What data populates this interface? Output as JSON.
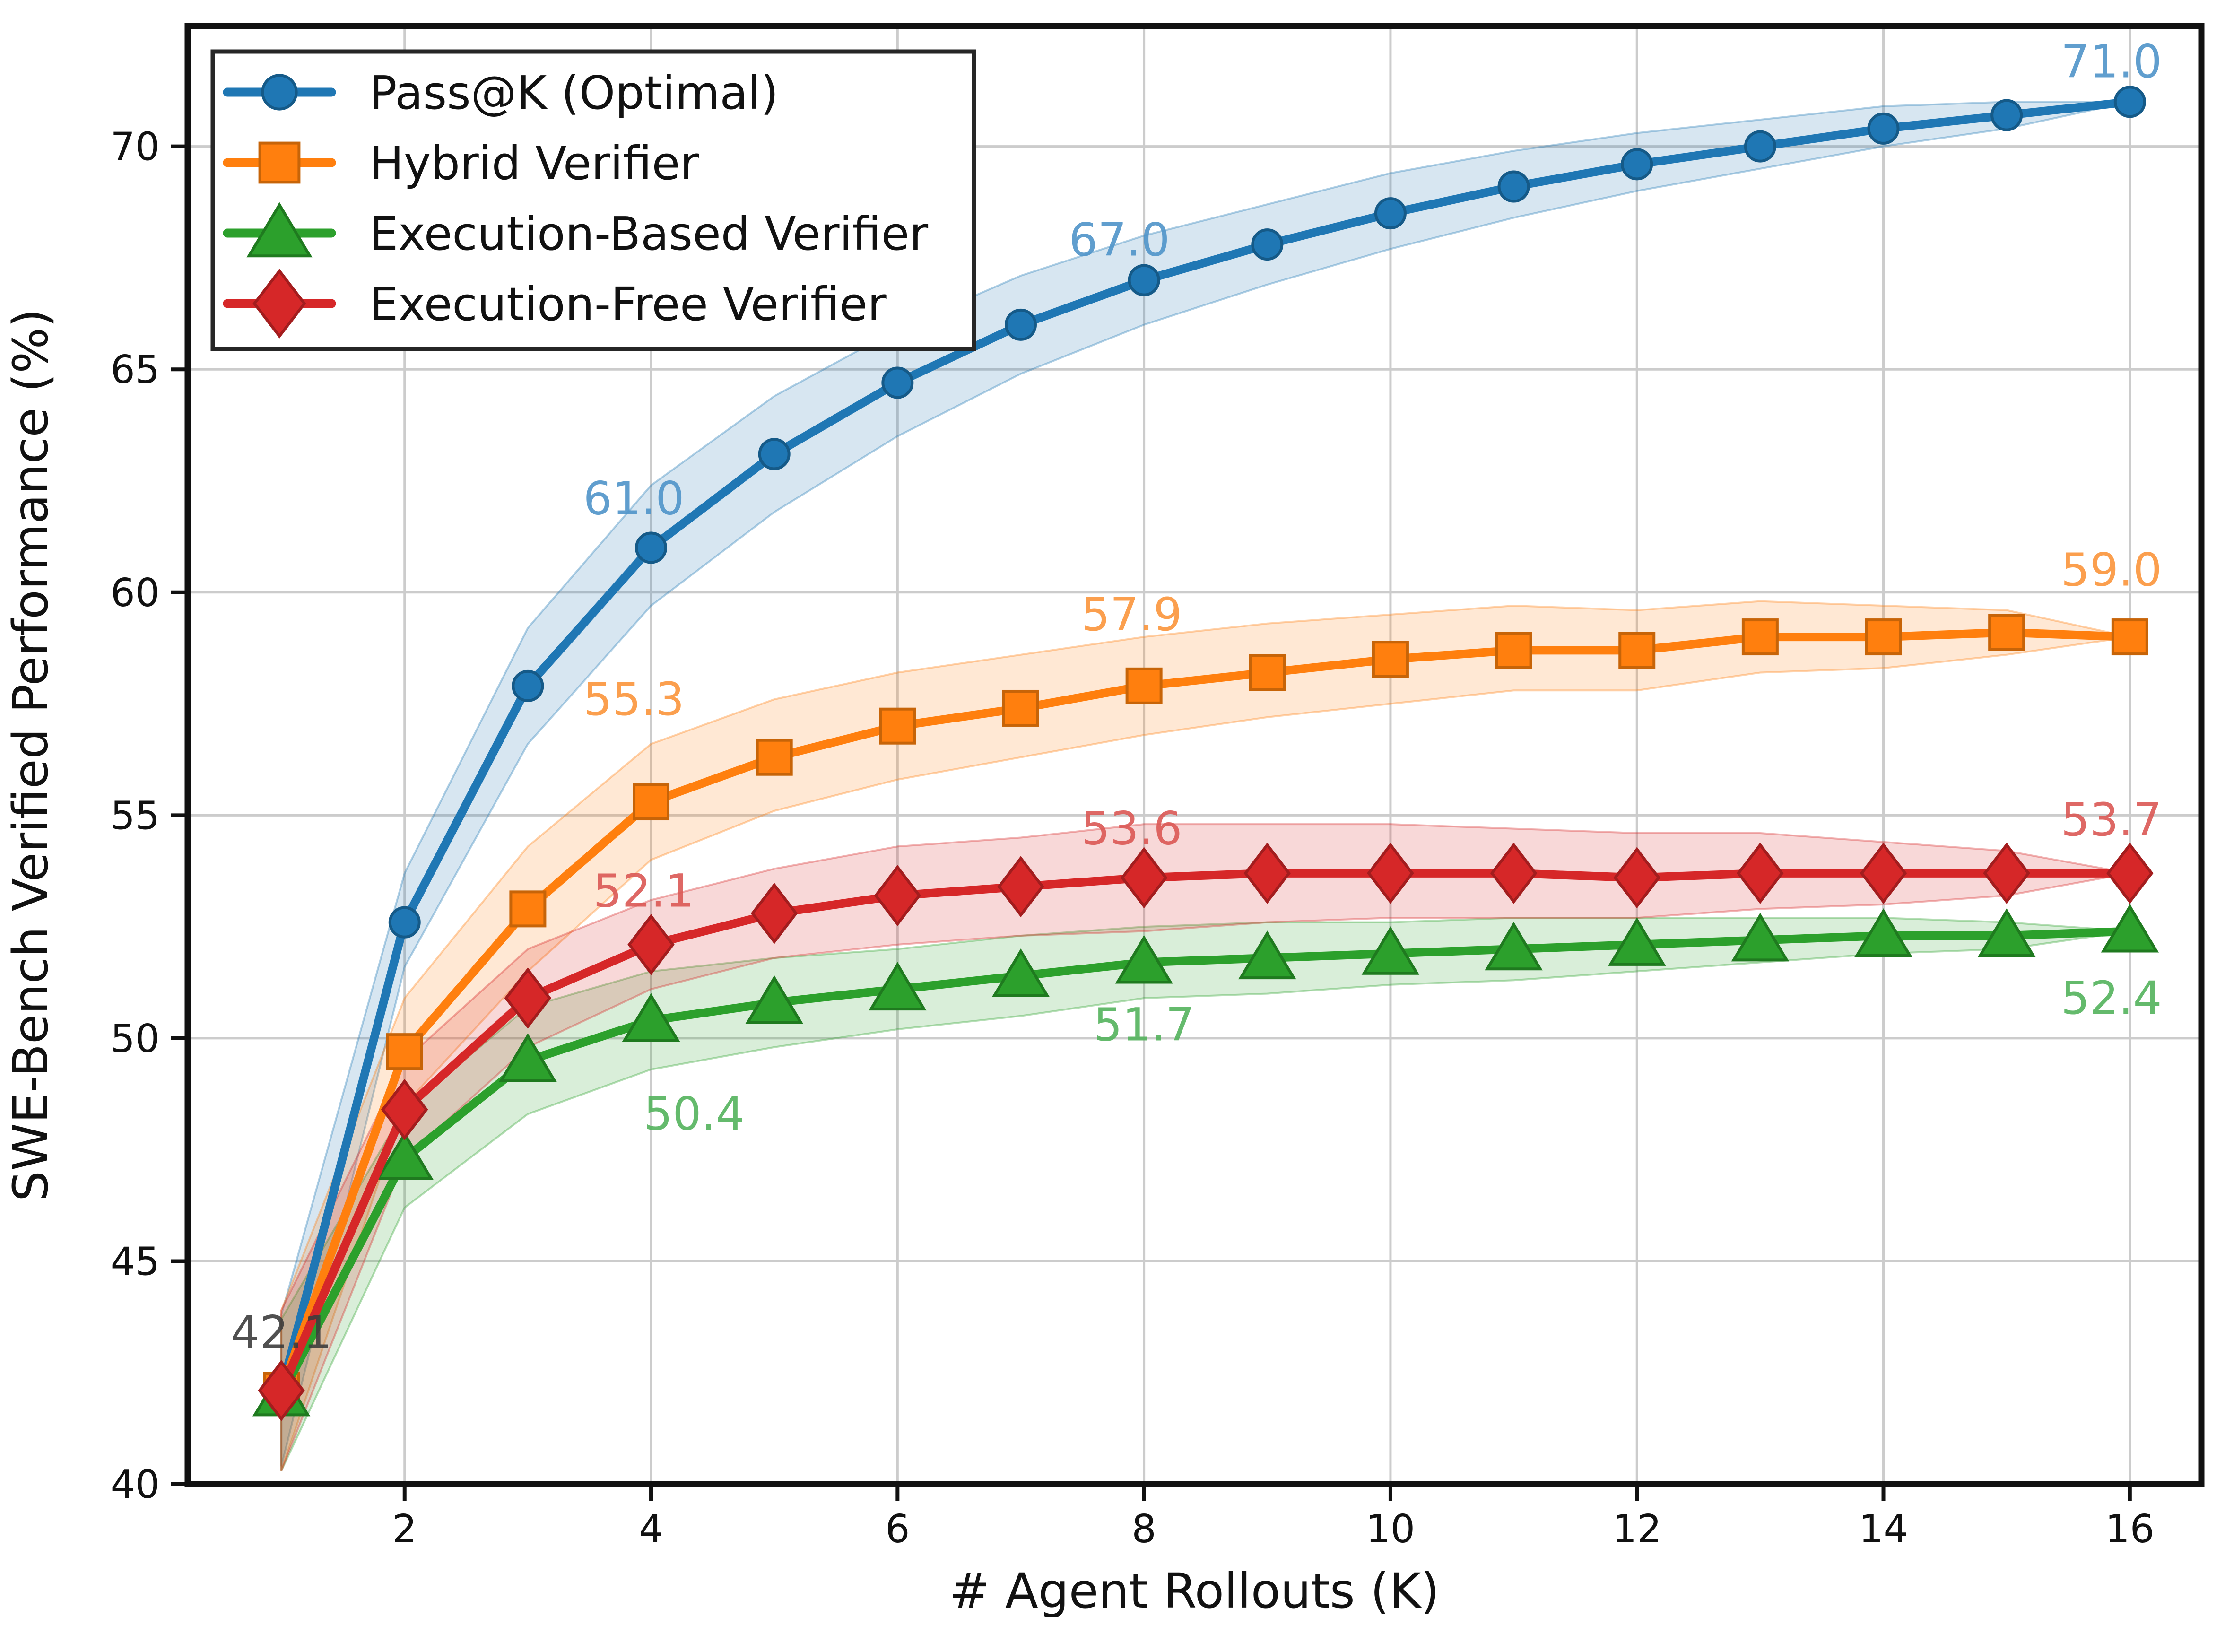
{
  "figure": {
    "background": "#ffffff"
  },
  "chart_data": {
    "type": "line",
    "title": "",
    "xlabel": "# Agent Rollouts (K)",
    "ylabel": "SWE-Bench Verified Performance (%)",
    "x": [
      1,
      2,
      3,
      4,
      5,
      6,
      7,
      8,
      9,
      10,
      11,
      12,
      13,
      14,
      15,
      16
    ],
    "xticks": [
      2,
      4,
      6,
      8,
      10,
      12,
      14,
      16
    ],
    "yticks": [
      40,
      45,
      50,
      55,
      60,
      65,
      70
    ],
    "xlim": [
      0.24,
      16.58
    ],
    "ylim": [
      40,
      72.7
    ],
    "grid": true,
    "grid_color": "#cccccc",
    "axis_color": "#111111",
    "tick_label_color": "#111111",
    "legend": {
      "position": "upper left",
      "border_color": "#262626",
      "background": "#ffffff",
      "text_color": "#111111"
    },
    "series": [
      {
        "id": "pass-at-k-optimal",
        "name": "Pass@K (Optimal)",
        "marker": "circle",
        "color": "#1f77b4",
        "edge_color": "#155a88",
        "values": [
          42.1,
          52.6,
          57.9,
          61.0,
          63.1,
          64.7,
          66.0,
          67.0,
          67.8,
          68.5,
          69.1,
          69.6,
          70.0,
          70.4,
          70.7,
          71.0
        ],
        "band_low": [
          40.4,
          51.6,
          56.6,
          59.7,
          61.8,
          63.5,
          64.9,
          66.0,
          66.9,
          67.7,
          68.4,
          69.0,
          69.5,
          70.0,
          70.4,
          71.0
        ],
        "band_high": [
          43.8,
          53.7,
          59.2,
          62.4,
          64.4,
          65.9,
          67.1,
          68.0,
          68.7,
          69.4,
          69.9,
          70.3,
          70.6,
          70.9,
          71.0,
          71.0
        ]
      },
      {
        "id": "hybrid-verifier",
        "name": "Hybrid Verifier",
        "marker": "square",
        "color": "#ff7f0e",
        "edge_color": "#c76408",
        "values": [
          42.1,
          49.7,
          52.9,
          55.3,
          56.3,
          57.0,
          57.4,
          57.9,
          58.2,
          58.5,
          58.7,
          58.7,
          59.0,
          59.0,
          59.1,
          59.0
        ],
        "band_low": [
          40.3,
          48.5,
          51.5,
          54.0,
          55.1,
          55.8,
          56.3,
          56.8,
          57.2,
          57.5,
          57.8,
          57.8,
          58.2,
          58.3,
          58.6,
          59.0
        ],
        "band_high": [
          43.9,
          50.9,
          54.3,
          56.6,
          57.6,
          58.2,
          58.6,
          59.0,
          59.3,
          59.5,
          59.7,
          59.6,
          59.8,
          59.7,
          59.6,
          59.0
        ]
      },
      {
        "id": "execution-based-verifier",
        "name": "Execution-Based Verifier",
        "marker": "triangle",
        "color": "#2ca02c",
        "edge_color": "#1f7a1f",
        "values": [
          42.0,
          47.3,
          49.5,
          50.4,
          50.8,
          51.1,
          51.4,
          51.7,
          51.8,
          51.9,
          52.0,
          52.1,
          52.2,
          52.3,
          52.3,
          52.4
        ],
        "band_low": [
          40.3,
          46.2,
          48.3,
          49.3,
          49.8,
          50.2,
          50.5,
          50.9,
          51.0,
          51.2,
          51.3,
          51.5,
          51.7,
          51.9,
          52.0,
          52.4
        ],
        "band_high": [
          43.7,
          48.4,
          50.7,
          51.5,
          51.8,
          52.0,
          52.3,
          52.5,
          52.6,
          52.6,
          52.7,
          52.7,
          52.7,
          52.7,
          52.6,
          52.4
        ]
      },
      {
        "id": "execution-free-verifier",
        "name": "Execution-Free Verifier",
        "marker": "diamond",
        "color": "#d62728",
        "edge_color": "#a31d1e",
        "values": [
          42.1,
          48.4,
          50.9,
          52.1,
          52.8,
          53.2,
          53.4,
          53.6,
          53.7,
          53.7,
          53.7,
          53.6,
          53.7,
          53.7,
          53.7,
          53.7
        ],
        "band_low": [
          40.3,
          47.3,
          49.8,
          51.1,
          51.8,
          52.1,
          52.3,
          52.4,
          52.6,
          52.7,
          52.7,
          52.7,
          52.9,
          53.0,
          53.2,
          53.7
        ],
        "band_high": [
          43.9,
          49.5,
          52.0,
          53.1,
          53.8,
          54.3,
          54.5,
          54.8,
          54.8,
          54.8,
          54.7,
          54.6,
          54.6,
          54.4,
          54.2,
          53.7
        ]
      }
    ],
    "annotations": [
      {
        "text": "42.1",
        "x": 1.0,
        "y": 43.4,
        "color": "#3d3d3d"
      },
      {
        "text": "61.0",
        "x": 3.86,
        "y": 62.1,
        "color": "#4f94c9"
      },
      {
        "text": "55.3",
        "x": 3.86,
        "y": 57.6,
        "color": "#fb953b"
      },
      {
        "text": "52.1",
        "x": 3.94,
        "y": 53.3,
        "color": "#da5854"
      },
      {
        "text": "50.4",
        "x": 4.35,
        "y": 48.3,
        "color": "#53b25c"
      },
      {
        "text": "67.0",
        "x": 7.8,
        "y": 67.9,
        "color": "#4f94c9"
      },
      {
        "text": "57.9",
        "x": 7.9,
        "y": 59.5,
        "color": "#fb953b"
      },
      {
        "text": "53.6",
        "x": 7.9,
        "y": 54.7,
        "color": "#da5854"
      },
      {
        "text": "51.7",
        "x": 8.0,
        "y": 50.3,
        "color": "#53b25c"
      },
      {
        "text": "71.0",
        "x": 15.85,
        "y": 71.9,
        "color": "#4f94c9"
      },
      {
        "text": "59.0",
        "x": 15.85,
        "y": 60.5,
        "color": "#fb953b"
      },
      {
        "text": "53.7",
        "x": 15.85,
        "y": 54.9,
        "color": "#da5854"
      },
      {
        "text": "52.4",
        "x": 15.85,
        "y": 50.9,
        "color": "#53b25c"
      }
    ]
  }
}
